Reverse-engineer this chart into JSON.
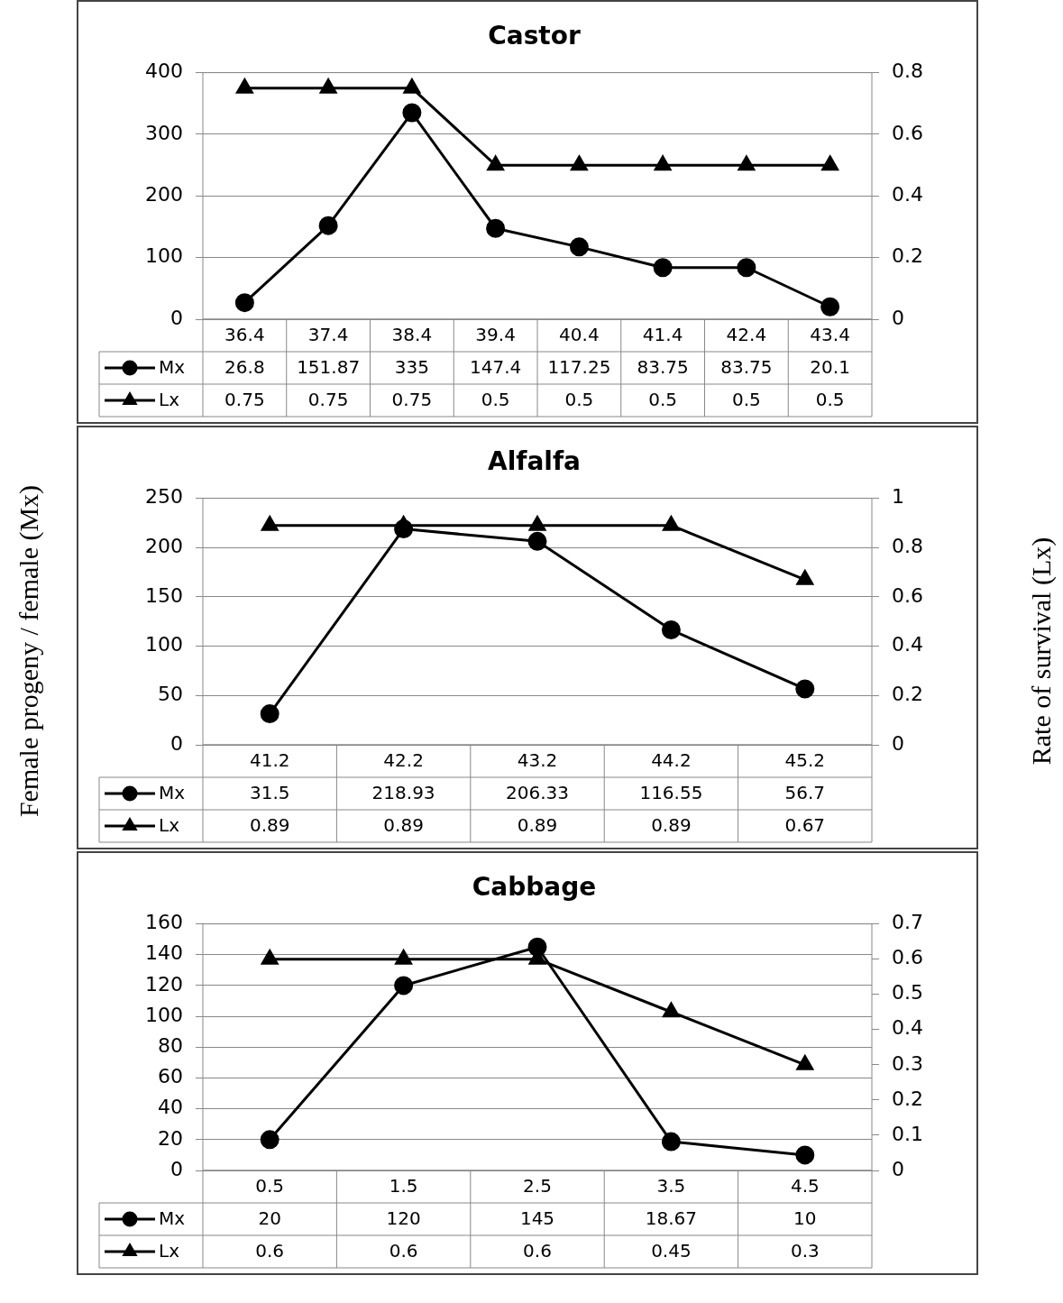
{
  "chart_data": [
    {
      "type": "line",
      "title": "Castor",
      "categories": [
        "36.4",
        "37.4",
        "38.4",
        "39.4",
        "40.4",
        "41.4",
        "42.4",
        "43.4"
      ],
      "series": [
        {
          "name": "Mx",
          "color": "#000000",
          "marker": "circle",
          "values": [
            26.8,
            151.87,
            335,
            147.4,
            117.25,
            83.75,
            83.75,
            20.1
          ]
        },
        {
          "name": "Lx",
          "color": "#000000",
          "marker": "triangle",
          "axis": "y2",
          "values": [
            0.75,
            0.75,
            0.75,
            0.5,
            0.5,
            0.5,
            0.5,
            0.5
          ]
        }
      ],
      "ylim": [
        0,
        400
      ],
      "yticks": [
        0,
        100,
        200,
        300,
        400
      ],
      "y2lim": [
        0,
        0.8
      ],
      "y2ticks": [
        0,
        0.2,
        0.4,
        0.6,
        0.8
      ],
      "grid": "y",
      "legend": "bottom",
      "data_labels": true
    },
    {
      "type": "line",
      "title": "Alfalfa",
      "ylabel": "Female progeny / female (Mx)",
      "y2label": "Rate of survival (Lx)",
      "categories": [
        "41.2",
        "42.2",
        "43.2",
        "44.2",
        "45.2"
      ],
      "series": [
        {
          "name": "Mx",
          "color": "#000000",
          "marker": "circle",
          "values": [
            31.5,
            218.93,
            206.33,
            116.55,
            56.7
          ]
        },
        {
          "name": "Lx",
          "color": "#000000",
          "marker": "triangle",
          "axis": "y2",
          "values": [
            0.89,
            0.89,
            0.89,
            0.89,
            0.67
          ]
        }
      ],
      "ylim": [
        0,
        250
      ],
      "yticks": [
        0,
        50,
        100,
        150,
        200,
        250
      ],
      "y2lim": [
        0,
        1
      ],
      "y2ticks": [
        0,
        0.2,
        0.4,
        0.6,
        0.8,
        1
      ],
      "grid": "y",
      "legend": "bottom",
      "data_labels": true
    },
    {
      "type": "line",
      "title": "Cabbage",
      "categories": [
        "0.5",
        "1.5",
        "2.5",
        "3.5",
        "4.5"
      ],
      "series": [
        {
          "name": "Mx",
          "color": "#000000",
          "marker": "circle",
          "values": [
            20,
            120,
            145,
            18.67,
            10
          ]
        },
        {
          "name": "Lx",
          "color": "#000000",
          "marker": "triangle",
          "axis": "y2",
          "values": [
            0.6,
            0.6,
            0.6,
            0.45,
            0.3
          ]
        }
      ],
      "ylim": [
        0,
        160
      ],
      "yticks": [
        0,
        20,
        40,
        60,
        80,
        100,
        120,
        140,
        160
      ],
      "y2lim": [
        0,
        0.7
      ],
      "y2ticks": [
        0,
        0.1,
        0.2,
        0.3,
        0.4,
        0.5,
        0.6,
        0.7
      ],
      "grid": "y",
      "legend": "bottom",
      "data_labels": true
    }
  ]
}
